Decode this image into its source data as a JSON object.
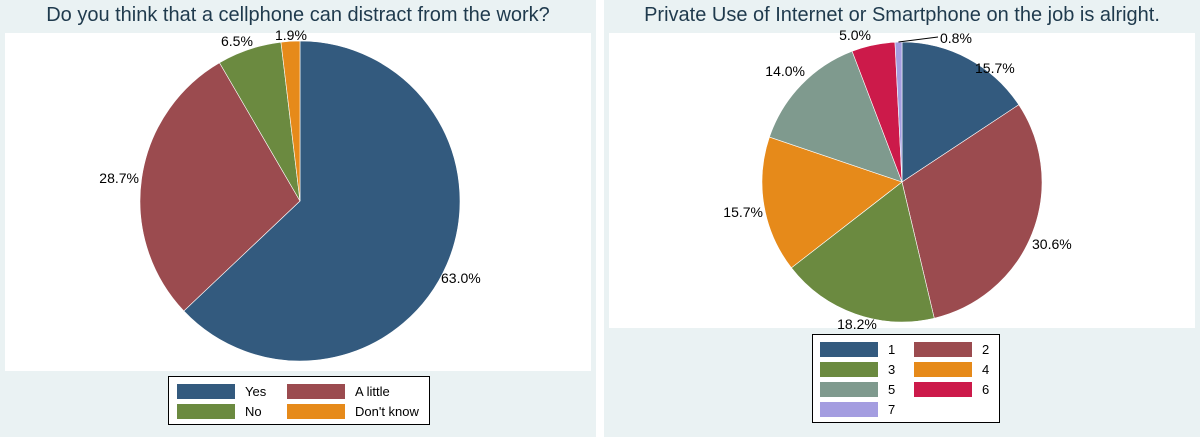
{
  "chart_data": [
    {
      "type": "pie",
      "title": "Do you think that a cellphone can distract from the work?",
      "categories": [
        "Yes",
        "A little",
        "No",
        "Don't know"
      ],
      "values": [
        63.0,
        28.7,
        6.5,
        1.9
      ],
      "labels": [
        "63.0%",
        "28.7%",
        "6.5%",
        "1.9%"
      ],
      "colors": [
        "#335a7e",
        "#9b4b4f",
        "#6b8a40",
        "#e68a1a"
      ],
      "legend_position": "bottom"
    },
    {
      "type": "pie",
      "title": "Private Use of Internet or Smartphone on the job is alright.",
      "categories": [
        "1",
        "2",
        "3",
        "4",
        "5",
        "6",
        "7"
      ],
      "values": [
        15.7,
        30.6,
        18.2,
        15.7,
        14.0,
        5.0,
        0.8
      ],
      "labels": [
        "15.7%",
        "30.6%",
        "18.2%",
        "15.7%",
        "14.0%",
        "5.0%",
        "0.8%"
      ],
      "colors": [
        "#335a7e",
        "#9b4b4f",
        "#6b8a40",
        "#e68a1a",
        "#7f9a8e",
        "#cc1a4a",
        "#a49de0"
      ],
      "legend_position": "bottom"
    }
  ]
}
